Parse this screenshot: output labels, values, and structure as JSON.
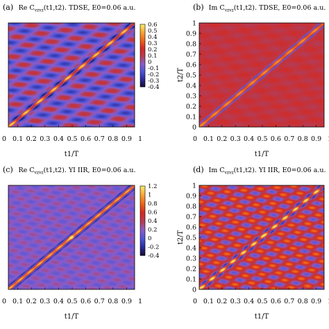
{
  "colors": {
    "scale": [
      "#140a2e",
      "#2a2a9c",
      "#4d56d8",
      "#8c5cc8",
      "#b83a50",
      "#d42a22",
      "#ee6418",
      "#f8a430",
      "#fae86a"
    ]
  },
  "chart_data": [
    {
      "type": "heatmap",
      "panel": "(a)",
      "title_main": "Re C",
      "title_sub": "vzvz",
      "title_rest": "(t1,t2). TDSE, E0=0.06 a.u.",
      "xlabel": "t1/T",
      "ylabel": "",
      "xlim": [
        0,
        1
      ],
      "ylim": [
        0,
        1
      ],
      "xticks": [
        "0",
        "0.1",
        "0.2",
        "0.3",
        "0.4",
        "0.5",
        "0.6",
        "0.7",
        "0.8",
        "0.9",
        "1"
      ],
      "yticks": [],
      "colorbar": {
        "ticks": [
          "0.6",
          "0.5",
          "0.4",
          "0.3",
          "0.2",
          "0.1",
          "0",
          "-0.1",
          "-0.2",
          "-0.3",
          "-0.4"
        ],
        "range": [
          -0.45,
          0.65
        ]
      },
      "field": {
        "background": -0.05,
        "diagonal_peak": 0.45,
        "diagonal_width": 0.012,
        "side_band_offset": 0.03,
        "side_band_value": -0.4,
        "oscillation_amplitude": 0.22,
        "oscillation_frequency": 9
      },
      "data_range": [
        0,
        1
      ]
    },
    {
      "type": "heatmap",
      "panel": "(b)",
      "title_main": "Im C",
      "title_sub": "vzvz",
      "title_rest": "(t1,t2). TDSE, E0=0.06 a.u.",
      "xlabel": "t1/T",
      "ylabel": "t2/T",
      "xlim": [
        0,
        1
      ],
      "ylim": [
        0,
        1
      ],
      "xticks": [
        "0",
        "0.1",
        "0.2",
        "0.3",
        "0.4",
        "0.5",
        "0.6",
        "0.7",
        "0.8",
        "0.9",
        "1"
      ],
      "yticks": [
        "0",
        "0.1",
        "0.2",
        "0.3",
        "0.4",
        "0.5",
        "0.6",
        "0.7",
        "0.8",
        "0.9",
        "1"
      ],
      "field": {
        "background": 0.15,
        "diagonal_peak": 0.45,
        "diagonal_width": 0.012,
        "side_band_offset": 0.03,
        "side_band_value": -0.35,
        "oscillation_amplitude": 0.06,
        "oscillation_frequency": 10
      },
      "data_range": [
        0,
        1
      ]
    },
    {
      "type": "heatmap",
      "panel": "(c)",
      "title_main": "Re C",
      "title_sub": "vzvz",
      "title_rest": "(t1,t2). YI IIR, E0=0.06 a.u.",
      "xlabel": "t1/T",
      "ylabel": "",
      "xlim": [
        0,
        1
      ],
      "ylim": [
        0,
        1
      ],
      "xticks": [
        "0",
        "0.1",
        "0.2",
        "0.3",
        "0.4",
        "0.5",
        "0.6",
        "0.7",
        "0.8",
        "0.9",
        "1"
      ],
      "yticks": [],
      "colorbar": {
        "ticks": [
          "1.2",
          "1",
          "0.8",
          "0.6",
          "0.4",
          "0.2",
          "0",
          "-0.2",
          "-0.4"
        ],
        "range": [
          -0.45,
          1.3
        ]
      },
      "field": {
        "background": -0.05,
        "diagonal_peak": 0.55,
        "diagonal_width": 0.01,
        "side_band_offset": 0.035,
        "side_band_value": -0.45,
        "oscillation_amplitude": 0.08,
        "oscillation_frequency": 13,
        "center_hotspot": 1.25
      },
      "data_range": [
        0,
        1
      ]
    },
    {
      "type": "heatmap",
      "panel": "(d)",
      "title_main": "Im C",
      "title_sub": "vzvz",
      "title_rest": "(t1,t2). YI IIR, E0=0.06 a.u.",
      "xlabel": "t1/T",
      "ylabel": "t2/T",
      "xlim": [
        0,
        1
      ],
      "ylim": [
        0,
        1
      ],
      "xticks": [
        "0",
        "0.1",
        "0.2",
        "0.3",
        "0.4",
        "0.5",
        "0.6",
        "0.7",
        "0.8",
        "0.9",
        "1"
      ],
      "yticks": [
        "0",
        "0.1",
        "0.2",
        "0.3",
        "0.4",
        "0.5",
        "0.6",
        "0.7",
        "0.8",
        "0.9",
        "1"
      ],
      "field": {
        "background": 0.12,
        "diagonal_peak": 0.45,
        "diagonal_width": 0.01,
        "side_band_offset": 0.03,
        "side_band_value": -0.3,
        "oscillation_amplitude": 0.28,
        "oscillation_frequency": 12,
        "center_hotspot": 0.6
      },
      "data_range": [
        0,
        1
      ]
    }
  ]
}
